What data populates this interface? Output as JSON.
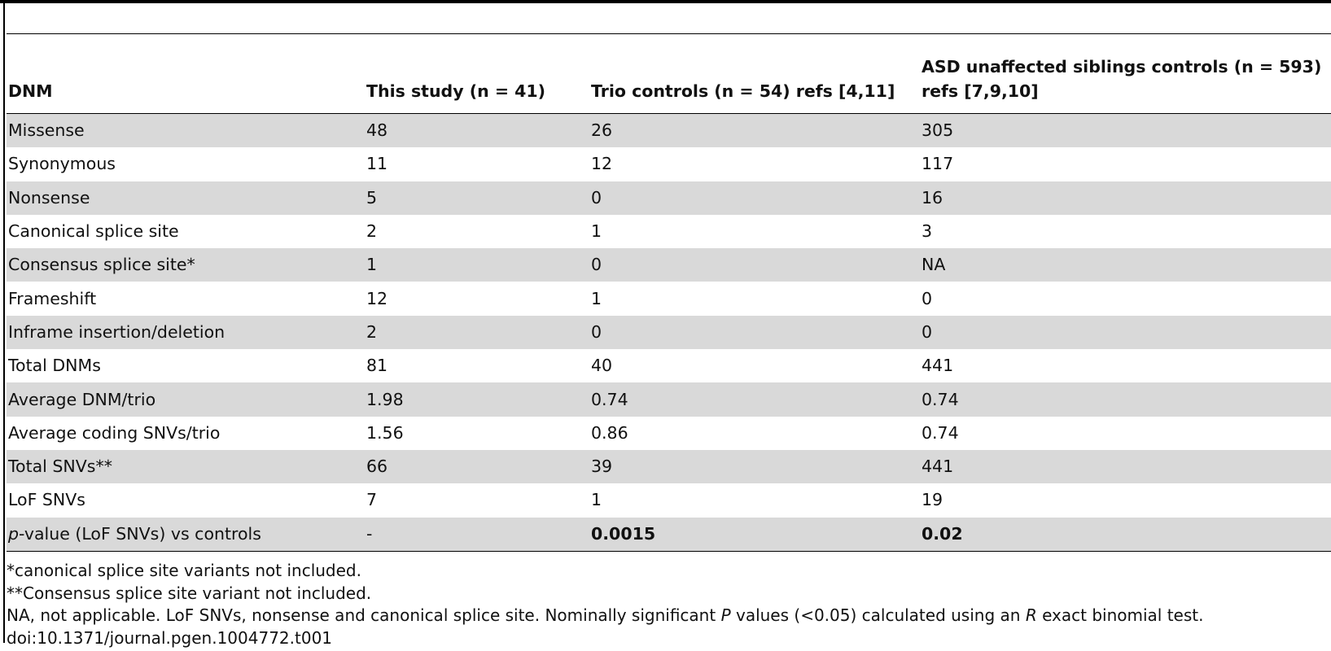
{
  "table": {
    "headers": [
      "DNM",
      "This study (n = 41)",
      "Trio controls (n = 54) refs [4,11]",
      "ASD unaffected siblings controls (n = 593) refs [7,9,10]"
    ],
    "rows": [
      {
        "label": "Missense",
        "study": "48",
        "trio": "26",
        "asd": "305"
      },
      {
        "label": "Synonymous",
        "study": "11",
        "trio": "12",
        "asd": "117"
      },
      {
        "label": "Nonsense",
        "study": "5",
        "trio": "0",
        "asd": "16"
      },
      {
        "label": "Canonical splice site",
        "study": "2",
        "trio": "1",
        "asd": "3"
      },
      {
        "label": "Consensus splice site*",
        "study": "1",
        "trio": "0",
        "asd": "NA"
      },
      {
        "label": "Frameshift",
        "study": "12",
        "trio": "1",
        "asd": "0"
      },
      {
        "label": "Inframe insertion/deletion",
        "study": "2",
        "trio": "0",
        "asd": "0"
      },
      {
        "label": "Total DNMs",
        "study": "81",
        "trio": "40",
        "asd": "441"
      },
      {
        "label": "Average DNM/trio",
        "study": "1.98",
        "trio": "0.74",
        "asd": "0.74"
      },
      {
        "label": "Average coding SNVs/trio",
        "study": "1.56",
        "trio": "0.86",
        "asd": "0.74"
      },
      {
        "label": "Total SNVs**",
        "study": "66",
        "trio": "39",
        "asd": "441"
      },
      {
        "label": "LoF SNVs",
        "study": "7",
        "trio": "1",
        "asd": "19"
      }
    ],
    "pvalue_row": {
      "label_italic": "p",
      "label_rest": "-value (LoF SNVs) vs controls",
      "study": "-",
      "trio": "0.0015",
      "asd": "0.02"
    }
  },
  "footnotes": {
    "note1": "*canonical splice site variants not included.",
    "note2": "**Consensus splice site variant not included.",
    "note3_a": "NA, not applicable. LoF SNVs, nonsense and canonical splice site. Nominally significant ",
    "note3_p": "P",
    "note3_b": " values (<0.05) calculated using an ",
    "note3_r": "R",
    "note3_c": " exact binomial test.",
    "doi": "doi:10.1371/journal.pgen.1004772.t001"
  }
}
